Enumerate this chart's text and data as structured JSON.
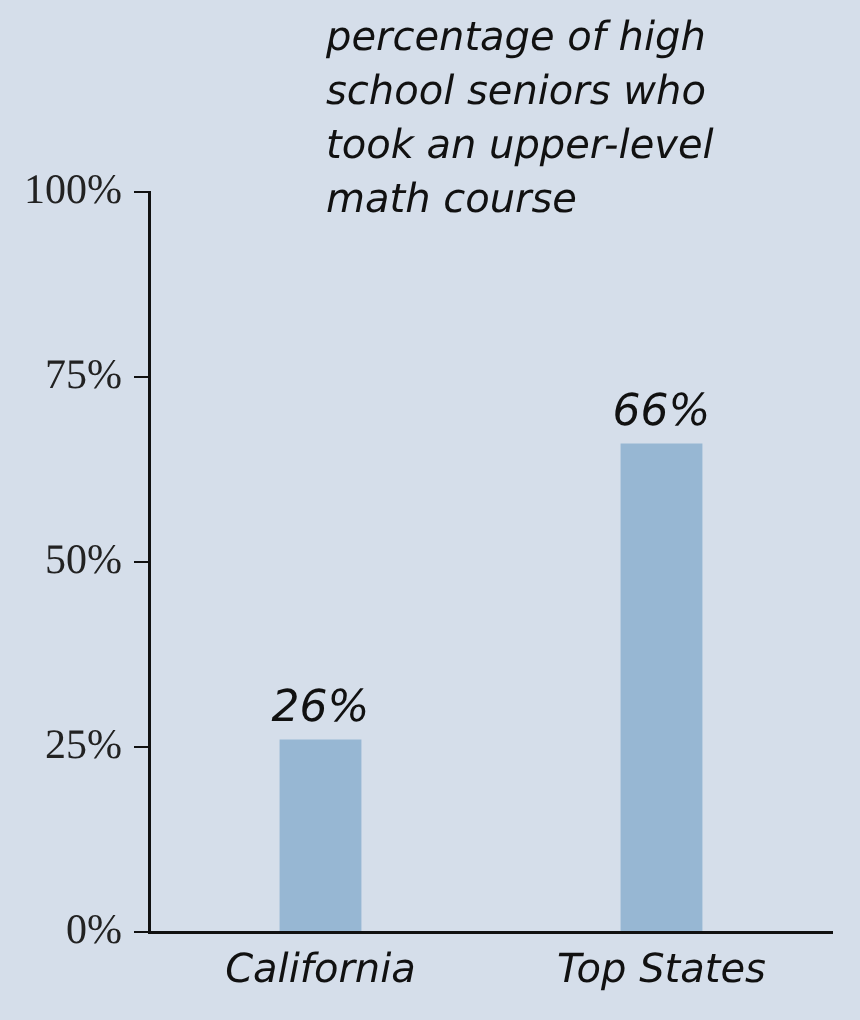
{
  "chart_data": {
    "type": "bar",
    "title": "percentage of high school seniors who took an upper-level math course",
    "categories": [
      "California",
      "Top States"
    ],
    "values": [
      26,
      66
    ],
    "color": "#97b7d3",
    "value_labels": [
      "26%",
      "66%"
    ],
    "ylim": [
      0,
      100
    ],
    "yticks": [
      {
        "value": 0,
        "label": "0%"
      },
      {
        "value": 25,
        "label": "25%"
      },
      {
        "value": 50,
        "label": "50%"
      },
      {
        "value": 75,
        "label": "75%"
      },
      {
        "value": 100,
        "label": "100%"
      }
    ],
    "grid": false,
    "legend": false
  }
}
